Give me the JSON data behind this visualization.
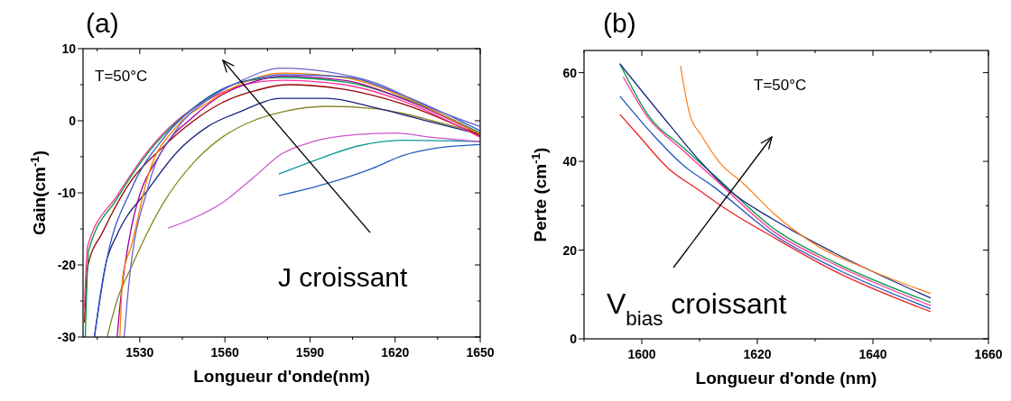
{
  "chart_data": [
    {
      "type": "line",
      "title": "(a)",
      "xlabel": "Longueur d'onde(nm)",
      "ylabel": "Gain(cm$^{-1}$)",
      "xlim": [
        1510,
        1650
      ],
      "ylim": [
        -30,
        10
      ],
      "xticks": [
        {
          "value": 1515,
          "label": null
        },
        1530,
        {
          "value": 1545,
          "label": null
        },
        1560,
        {
          "value": 1575,
          "label": null
        },
        1590,
        {
          "value": 1605,
          "label": null
        },
        1620,
        {
          "value": 1635,
          "label": null
        },
        1650
      ],
      "yticks": [
        -30,
        {
          "value": -25,
          "label": null
        },
        -20,
        {
          "value": -15,
          "label": null
        },
        -10,
        {
          "value": -5,
          "label": null
        },
        0,
        {
          "value": 5,
          "label": null
        },
        10
      ],
      "annotations": [
        "T=50°C",
        "J croissant"
      ],
      "series": [
        {
          "color": "#1f5fbf",
          "x": [
            1579,
            1596,
            1612,
            1623,
            1633,
            1650
          ],
          "values": [
            -10.4,
            -8.7,
            -6.6,
            -4.8,
            -3.9,
            -3.3
          ]
        },
        {
          "color": "#119999",
          "x": [
            1579,
            1591,
            1607,
            1623,
            1650
          ],
          "values": [
            -7.4,
            -5.6,
            -3.5,
            -2.7,
            -2.9
          ]
        },
        {
          "color": "#cc55cc",
          "x": [
            1540,
            1549,
            1559,
            1570,
            1580,
            1591,
            1607,
            1620,
            1633,
            1650
          ],
          "values": [
            -14.9,
            -13.5,
            -11.4,
            -7.9,
            -4.6,
            -2.9,
            -1.9,
            -1.7,
            -2.3,
            -2.9
          ]
        },
        {
          "color": "#888822",
          "x": [
            1518.5,
            1522,
            1527,
            1538,
            1549,
            1559,
            1570,
            1580,
            1596,
            1612,
            1623,
            1633,
            1650
          ],
          "values": [
            -30,
            -24.9,
            -20.3,
            -11.6,
            -5.8,
            -2.3,
            0,
            1.2,
            2,
            1.7,
            1,
            0,
            -1.7
          ]
        },
        {
          "color": "#1a237e",
          "x": [
            1514,
            1518,
            1522,
            1533,
            1543,
            1554,
            1565,
            1580,
            1596,
            1612,
            1633,
            1650
          ],
          "values": [
            -30,
            -19.9,
            -15.8,
            -9.5,
            -4.4,
            -0.8,
            1.2,
            3.1,
            3.1,
            1.9,
            -0.2,
            -1.9
          ]
        },
        {
          "color": "#990000",
          "x": [
            1510.5,
            1511.6,
            1517,
            1527,
            1538,
            1549,
            1559,
            1570,
            1582,
            1601.6,
            1623,
            1650
          ],
          "values": [
            -28,
            -20.3,
            -15.4,
            -8.3,
            -3.7,
            0,
            2.5,
            4.1,
            5,
            4.4,
            2.3,
            -2.1
          ]
        },
        {
          "color": "#ff3399",
          "x": [
            1510.5,
            1511.6,
            1522,
            1533,
            1543,
            1554,
            1565,
            1580,
            1602,
            1623,
            1650
          ],
          "values": [
            -26,
            -17.4,
            -10.4,
            -4.1,
            0,
            2.9,
            4.8,
            5.6,
            5,
            2.7,
            -2.3
          ]
        },
        {
          "color": "#009944",
          "x": [
            1510.8,
            1512,
            1522,
            1533,
            1543,
            1554,
            1565,
            1580,
            1602,
            1623,
            1650
          ],
          "values": [
            -30,
            -18,
            -10.8,
            -4.4,
            -0.2,
            3.1,
            5.3,
            6,
            5.4,
            3.1,
            -1.7
          ]
        },
        {
          "color": "#990099",
          "x": [
            1522,
            1523,
            1527,
            1538,
            1549,
            1559,
            1570,
            1580,
            1602,
            1623,
            1650
          ],
          "values": [
            -30,
            -25.7,
            -14.9,
            -4.1,
            0.6,
            3.6,
            5.4,
            6.2,
            5.6,
            3,
            -1.9
          ]
        },
        {
          "color": "#ff8000",
          "x": [
            1523,
            1524,
            1527,
            1533,
            1543,
            1554,
            1565,
            1580,
            1602,
            1623,
            1650
          ],
          "values": [
            -30,
            -21.6,
            -17.4,
            -7.5,
            -0.8,
            2.5,
            5,
            6.6,
            6,
            3.3,
            -1.9
          ]
        },
        {
          "color": "#3355cc",
          "x": [
            1514,
            1518,
            1527,
            1538,
            1549,
            1559,
            1570,
            1580,
            1602,
            1623,
            1650
          ],
          "values": [
            -30,
            -20,
            -9.5,
            -2.6,
            1.8,
            4.4,
            5.8,
            6.4,
            6.1,
            3.5,
            -1.4
          ]
        },
        {
          "color": "#6666cc",
          "x": [
            1524.5,
            1526,
            1533,
            1543,
            1554,
            1565,
            1580,
            1596,
            1612,
            1633,
            1650
          ],
          "values": [
            -30,
            -23.2,
            -9.1,
            -1.2,
            2.9,
            5.4,
            7.3,
            6.8,
            5.4,
            1.7,
            -0.8
          ]
        }
      ]
    },
    {
      "type": "line",
      "title": "(b)",
      "xlabel": "Longueur d'onde (nm)",
      "ylabel": "Perte (cm$^{-1}$)",
      "xlim": [
        1590,
        1660
      ],
      "ylim": [
        0,
        65
      ],
      "xticks": [
        {
          "value": 1590,
          "label": null
        },
        1600,
        {
          "value": 1610,
          "label": null
        },
        1620,
        {
          "value": 1630,
          "label": null
        },
        1640,
        {
          "value": 1650,
          "label": null
        },
        1660
      ],
      "yticks": [
        0,
        {
          "value": 10,
          "label": null
        },
        20,
        {
          "value": 30,
          "label": null
        },
        40,
        {
          "value": 50,
          "label": null
        },
        60
      ],
      "annotations": [
        "T=50°C",
        "V$_{bias}$ croissant"
      ],
      "series": [
        {
          "color": "#ee2222",
          "x": [
            1596.2,
            1599.4,
            1604.6,
            1609.8,
            1615,
            1622.9,
            1633.3,
            1650
          ],
          "values": [
            50.6,
            45.9,
            38.4,
            33.6,
            28.9,
            22.8,
            15.3,
            6.1
          ]
        },
        {
          "color": "#2255bb",
          "x": [
            1596.2,
            1602,
            1607.2,
            1612.4,
            1622.9,
            1633.3,
            1650
          ],
          "values": [
            54.7,
            45.9,
            39.1,
            34.3,
            23.4,
            16,
            6.8
          ]
        },
        {
          "color": "#ff3399",
          "x": [
            1596.8,
            1601,
            1607.2,
            1612.4,
            1622.9,
            1633.3,
            1650
          ],
          "values": [
            59,
            50,
            42.4,
            36.3,
            24.1,
            16.8,
            7.5
          ]
        },
        {
          "color": "#009944",
          "x": [
            1596.2,
            1601,
            1607.2,
            1612.4,
            1622.9,
            1633.3,
            1650
          ],
          "values": [
            62,
            50.6,
            43.1,
            37,
            24.8,
            17.3,
            8.2
          ]
        },
        {
          "color": "#1a2a80",
          "x": [
            1596.2,
            1605,
            1610.3,
            1615,
            1622.9,
            1633.3,
            1650
          ],
          "values": [
            62,
            47.9,
            39.7,
            33.6,
            26.8,
            19.4,
            9.2
          ]
        },
        {
          "color": "#ff8020",
          "x": [
            1606.7,
            1608.3,
            1610.3,
            1613.5,
            1617.6,
            1622.9,
            1630.7,
            1638.5,
            1650
          ],
          "values": [
            61.5,
            50.6,
            45.9,
            39.7,
            35,
            28.2,
            20.7,
            16,
            10.2
          ]
        }
      ]
    }
  ]
}
